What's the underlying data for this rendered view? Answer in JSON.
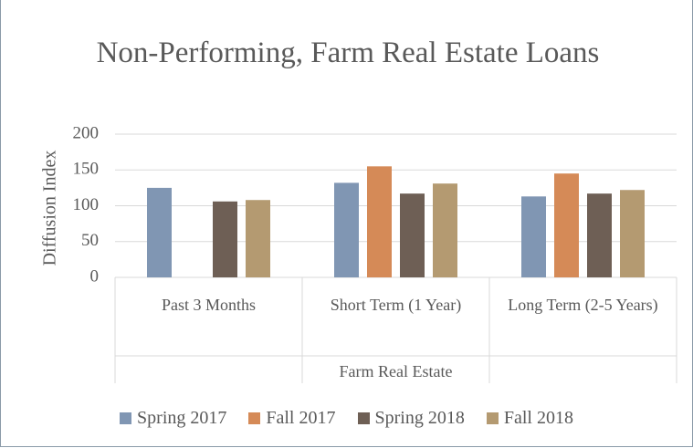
{
  "chart_data": {
    "type": "bar",
    "title": "Non-Performing, Farm Real Estate Loans",
    "y_label": "Diffusion Index",
    "group_label": "Farm Real Estate",
    "categories": [
      "Past 3 Months",
      "Short Term (1 Year)",
      "Long Term (2-5 Years)"
    ],
    "series": [
      {
        "name": "Spring 2017",
        "color": "#8096b3",
        "values": [
          125,
          132,
          113
        ]
      },
      {
        "name": "Fall 2017",
        "color": "#d58a57",
        "values": [
          null,
          155,
          145
        ]
      },
      {
        "name": "Spring 2018",
        "color": "#6e5f55",
        "values": [
          106,
          117,
          117
        ]
      },
      {
        "name": "Fall 2018",
        "color": "#b49a71",
        "values": [
          108,
          131,
          122
        ]
      }
    ],
    "ylim": [
      0,
      200
    ],
    "yticks": [
      0,
      50,
      100,
      150,
      200
    ],
    "grid": true,
    "legend": "bottom"
  }
}
